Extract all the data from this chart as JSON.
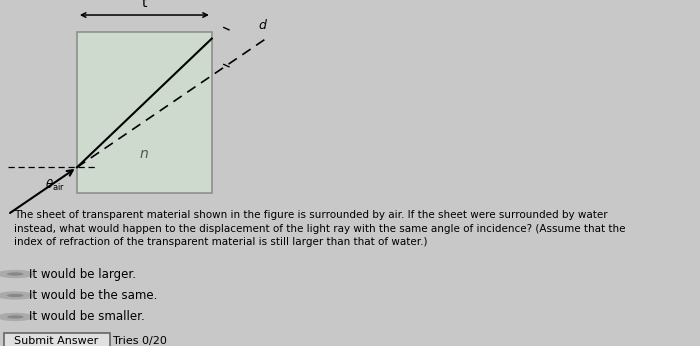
{
  "bg_color": "#c8c8c8",
  "rect_color": "#d0ddd0",
  "rect_edge": "#888888",
  "question_text": "The sheet of transparent material shown in the figure is surrounded by air. If the sheet were surrounded by water\ninstead, what would happen to the displacement of the light ray with the same angle of incidence? (Assume that the\nindex of refraction of the transparent material is still larger than that of water.)",
  "option1": "It would be larger.",
  "option2": "It would be the same.",
  "option3": "It would be smaller.",
  "submit_text": "Submit Answer",
  "tries_text": "Tries 0/20",
  "t_label": "t",
  "n_label": "n",
  "d_label": "d"
}
